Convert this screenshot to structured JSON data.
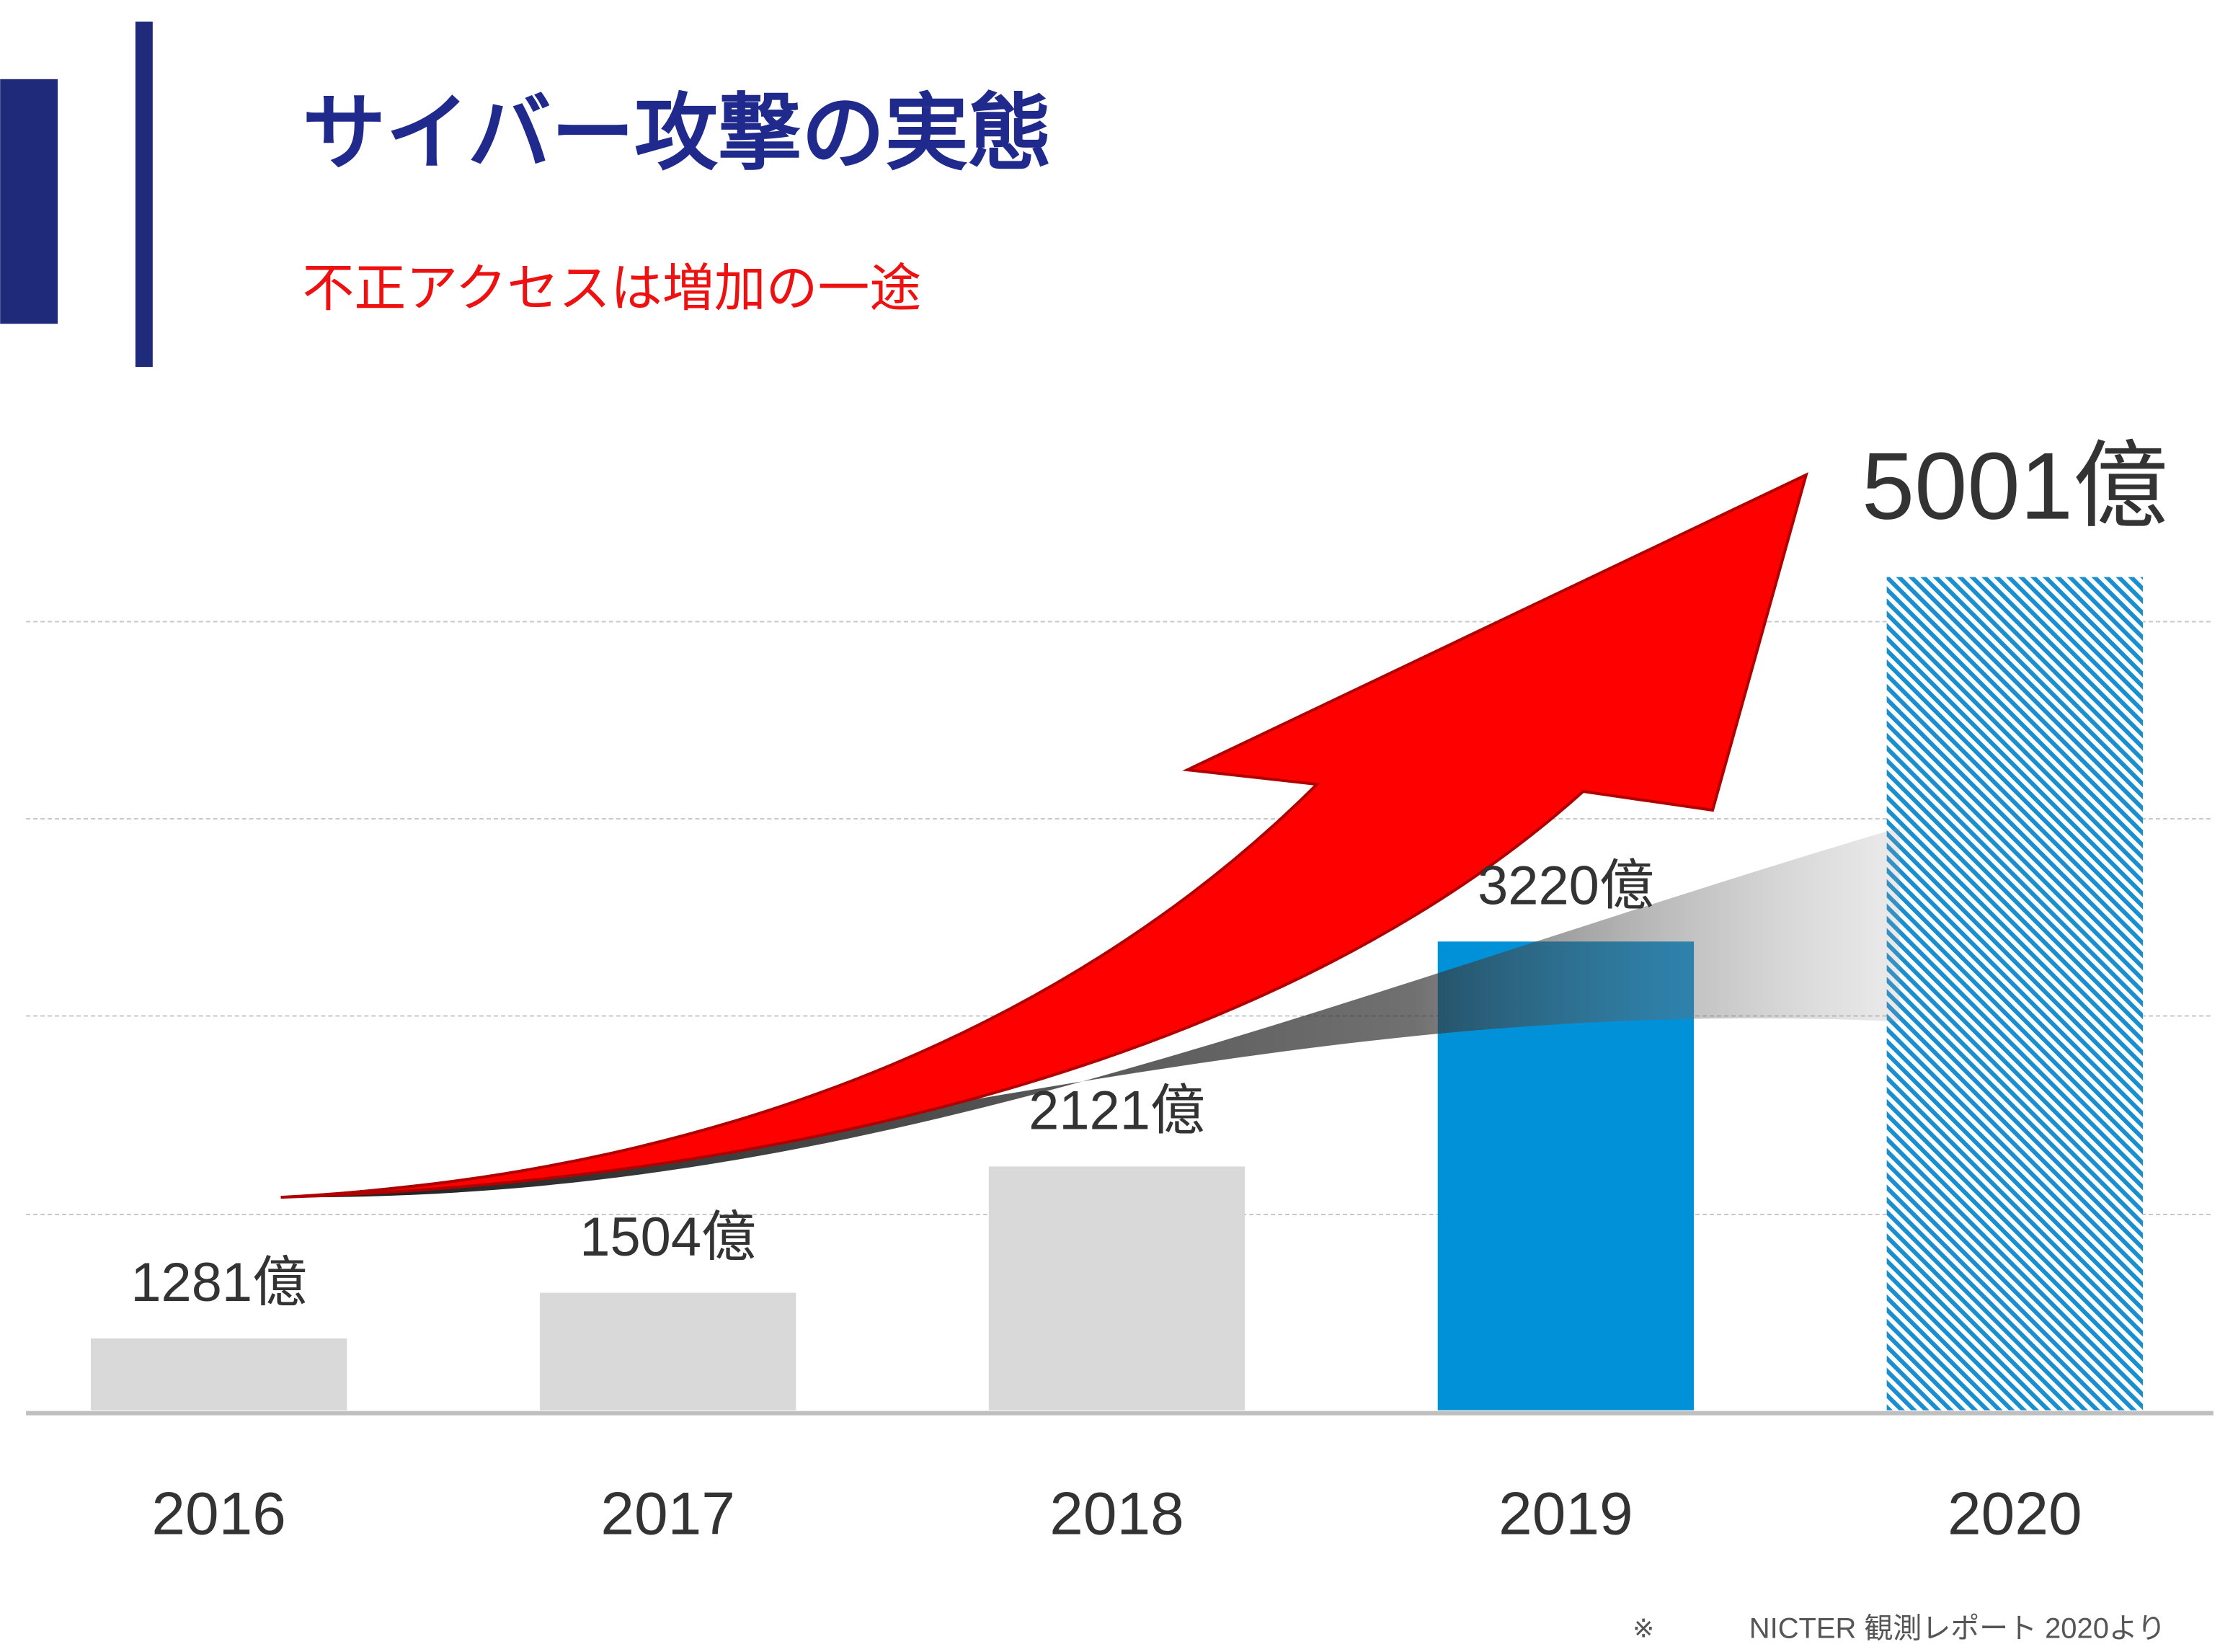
{
  "chart_data": {
    "type": "bar",
    "title": "サイバー攻撃の実態",
    "subtitle": "不正アクセスは増加の一途",
    "categories": [
      "2016",
      "2017",
      "2018",
      "2019",
      "2020"
    ],
    "values": [
      1281,
      1504,
      2121,
      3220,
      5001
    ],
    "value_labels": [
      "1281億",
      "1504億",
      "2121億",
      "3220億",
      "5001億"
    ],
    "colors": [
      "#d9d9d9",
      "#d9d9d9",
      "#d9d9d9",
      "#0091d9",
      "#1a8fd0"
    ],
    "hatched": [
      false,
      false,
      false,
      false,
      true
    ],
    "ylim": [
      930,
      5500
    ],
    "grid": true,
    "note_mark": "※",
    "note": "NICTER 観測レポート 2020より"
  }
}
